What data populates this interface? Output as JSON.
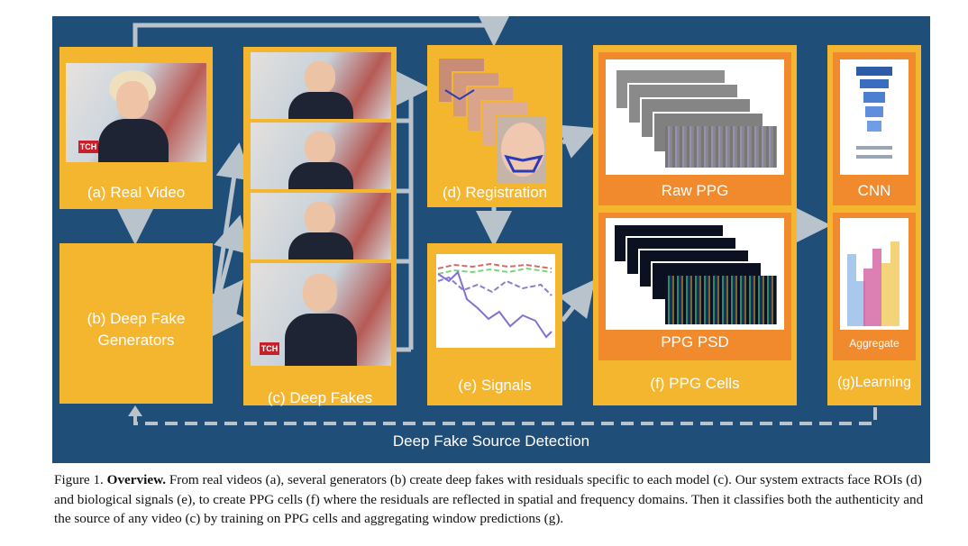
{
  "figure": {
    "colors": {
      "background": "#1f4e79",
      "box": "#f5b62f",
      "inner": "#f08a2c",
      "arrow": "#b9c3cc",
      "label_text": "#ffffff"
    },
    "panels": {
      "real_video": "(a) Real Video",
      "generators": "(b) Deep Fake Generators",
      "deep_fakes": "(c) Deep Fakes",
      "registration": "(d) Registration",
      "signals": "(e) Signals",
      "ppg_cells": "(f) PPG Cells",
      "raw_ppg": "Raw PPG",
      "ppg_psd": "PPG PSD",
      "cnn": "CNN",
      "aggregate": "Aggregate",
      "learning": "(g)Learning"
    },
    "tv_logo": "TCH",
    "bottom_label": "Deep Fake Source Detection"
  },
  "caption": {
    "prefix": "Figure 1. ",
    "bold": "Overview.",
    "text": " From real videos (a), several generators (b) create deep fakes with residuals specific to each model (c). Our system extracts face ROIs (d) and biological signals (e), to create PPG cells (f) where the residuals are reflected in spatial and frequency domains. Then it classifies both the authenticity and the source of any video (c) by training on PPG cells and aggregating window predictions (g)."
  }
}
